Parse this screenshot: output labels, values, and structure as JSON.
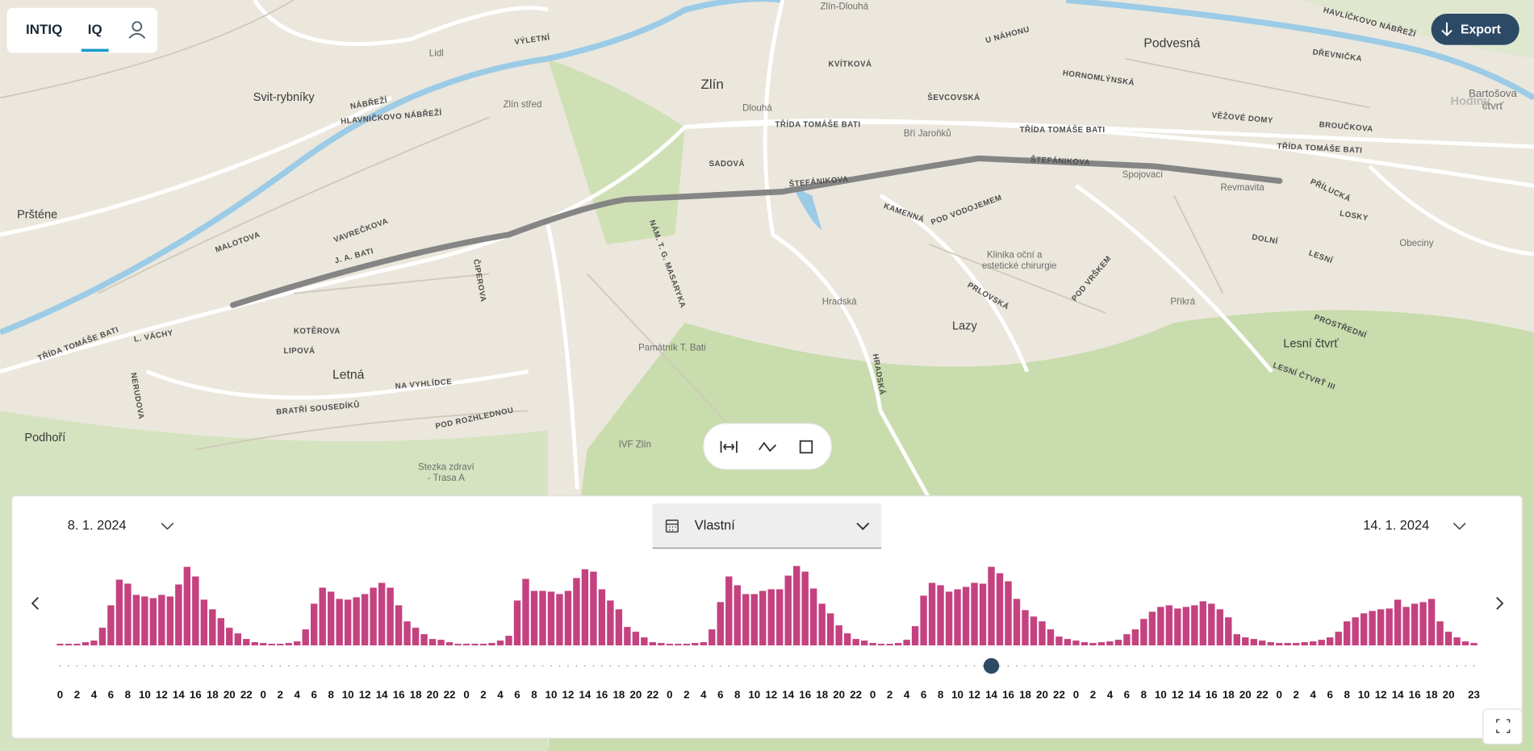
{
  "header": {
    "brand": "INTIQ",
    "tab": "IQ",
    "export": "Export",
    "overlay": "Hodiny"
  },
  "map": {
    "labels": [
      "Zlín",
      "Podvesná",
      "Svit-rybníky",
      "Pršténe",
      "Letná",
      "Podhoří",
      "Lazy",
      "Lesní čtvrť",
      "Zlín střed",
      "Dlouhá",
      "Bří Jaroňků",
      "Spojovací",
      "Revmavita",
      "Obeciny",
      "Příkrá",
      "Hradská",
      "Památník T. Bati",
      "IVF Zlín",
      "Stezka zdraví",
      "- Trasa A",
      "Klinika oční a",
      "estetické chirurgie",
      "Lidl",
      "Zlín-Dlouhá",
      "Bartošova",
      "čtvrť",
      "TŘÍDA TOMÁŠE BATI",
      "TŘÍDA TOMÁŠE BATI",
      "TŘÍDA TOMÁŠE BATI",
      "TŘÍDA TOMÁŠE BATI",
      "ŠTEFÁNIKOVA",
      "ŠTEFÁNIKOVA",
      "SADOVÁ",
      "KVÍTKOVÁ",
      "ŠEVCOVSKÁ",
      "HORNOMLÝNSKÁ",
      "VĚŽOVÉ DOMY",
      "BROUČKOVA",
      "NÁBŘEŽÍ",
      "HLAVNIČKOVO NÁBŘEŽÍ",
      "VÝLETNÍ",
      "KOTĚROVA",
      "LIPOVÁ",
      "NA VYHLÍDCE",
      "BRATŘÍ SOUSEDÍKŮ",
      "POD ROZHLEDNOU",
      "POD VODOJEMEM",
      "KAMENNÁ",
      "LOSKY",
      "DOLNÍ",
      "LESNÍ",
      "PŘÍLUCKÁ",
      "VAVREČKOVA",
      "MALOTOVA",
      "J. A. BATI",
      "PROSTŘEDNÍ",
      "LESNÍ ČTVRŤ III",
      "PRLOVSKÁ",
      "L. VÁCHY",
      "U NÁHONU",
      "DŘEVNIČKA",
      "HAVLÍČKOVO NÁBŘEŽÍ",
      "NÁM. T. G. MASARYKA",
      "POD VRŠKEM",
      "ČIPEROVA",
      "NERUDOVA",
      "HRADSKÁ"
    ]
  },
  "panel": {
    "date_from": "8. 1. 2024",
    "range": "Vlastní",
    "date_to": "14. 1. 2024"
  },
  "chart_data": {
    "type": "bar",
    "color": "#c4427f",
    "ylim": [
      0,
      100
    ],
    "selected_index": 110,
    "categories": [
      0,
      null,
      2,
      null,
      4,
      null,
      6,
      null,
      8,
      null,
      10,
      null,
      12,
      null,
      14,
      null,
      16,
      null,
      18,
      null,
      20,
      null,
      22,
      null,
      0,
      null,
      2,
      null,
      4,
      null,
      6,
      null,
      8,
      null,
      10,
      null,
      12,
      null,
      14,
      null,
      16,
      null,
      18,
      null,
      20,
      null,
      22,
      null,
      0,
      null,
      2,
      null,
      4,
      null,
      6,
      null,
      8,
      null,
      10,
      null,
      12,
      null,
      14,
      null,
      16,
      null,
      18,
      null,
      20,
      null,
      22,
      null,
      0,
      null,
      2,
      null,
      4,
      null,
      6,
      null,
      8,
      null,
      10,
      null,
      12,
      null,
      14,
      null,
      16,
      null,
      18,
      null,
      20,
      null,
      22,
      null,
      0,
      null,
      2,
      null,
      4,
      null,
      6,
      null,
      8,
      null,
      10,
      null,
      12,
      null,
      14,
      null,
      16,
      null,
      18,
      null,
      20,
      null,
      22,
      null,
      0,
      null,
      2,
      null,
      4,
      null,
      6,
      null,
      8,
      null,
      10,
      null,
      12,
      null,
      14,
      null,
      16,
      null,
      18,
      null,
      20,
      null,
      22,
      null,
      0,
      null,
      2,
      null,
      4,
      null,
      6,
      null,
      8,
      null,
      10,
      null,
      12,
      null,
      14,
      null,
      16,
      null,
      18,
      null,
      20,
      null,
      null,
      23
    ],
    "values": [
      2,
      2,
      2,
      4,
      6,
      22,
      50,
      82,
      77,
      63,
      61,
      59,
      63,
      61,
      76,
      98,
      86,
      57,
      45,
      34,
      22,
      15,
      8,
      4,
      3,
      2,
      2,
      3,
      5,
      20,
      52,
      72,
      67,
      58,
      57,
      60,
      64,
      72,
      78,
      72,
      50,
      30,
      22,
      14,
      8,
      7,
      4,
      2,
      2,
      2,
      2,
      3,
      6,
      12,
      56,
      83,
      68,
      68,
      67,
      64,
      68,
      84,
      95,
      92,
      70,
      56,
      45,
      23,
      17,
      10,
      4,
      3,
      2,
      2,
      2,
      3,
      4,
      20,
      54,
      86,
      75,
      64,
      64,
      68,
      70,
      70,
      87,
      99,
      92,
      71,
      52,
      40,
      25,
      15,
      8,
      6,
      3,
      2,
      2,
      3,
      7,
      24,
      62,
      78,
      75,
      67,
      70,
      73,
      78,
      77,
      98,
      90,
      80,
      58,
      44,
      36,
      30,
      20,
      11,
      8,
      6,
      4,
      3,
      4,
      5,
      7,
      14,
      20,
      33,
      42,
      48,
      50,
      46,
      48,
      50,
      55,
      52,
      45,
      35,
      14,
      10,
      8,
      6,
      4,
      3,
      3,
      3,
      4,
      5,
      7,
      10,
      17,
      30,
      35,
      40,
      43,
      45,
      46,
      57,
      48,
      52,
      54,
      58,
      30,
      17,
      10,
      5,
      3
    ]
  }
}
